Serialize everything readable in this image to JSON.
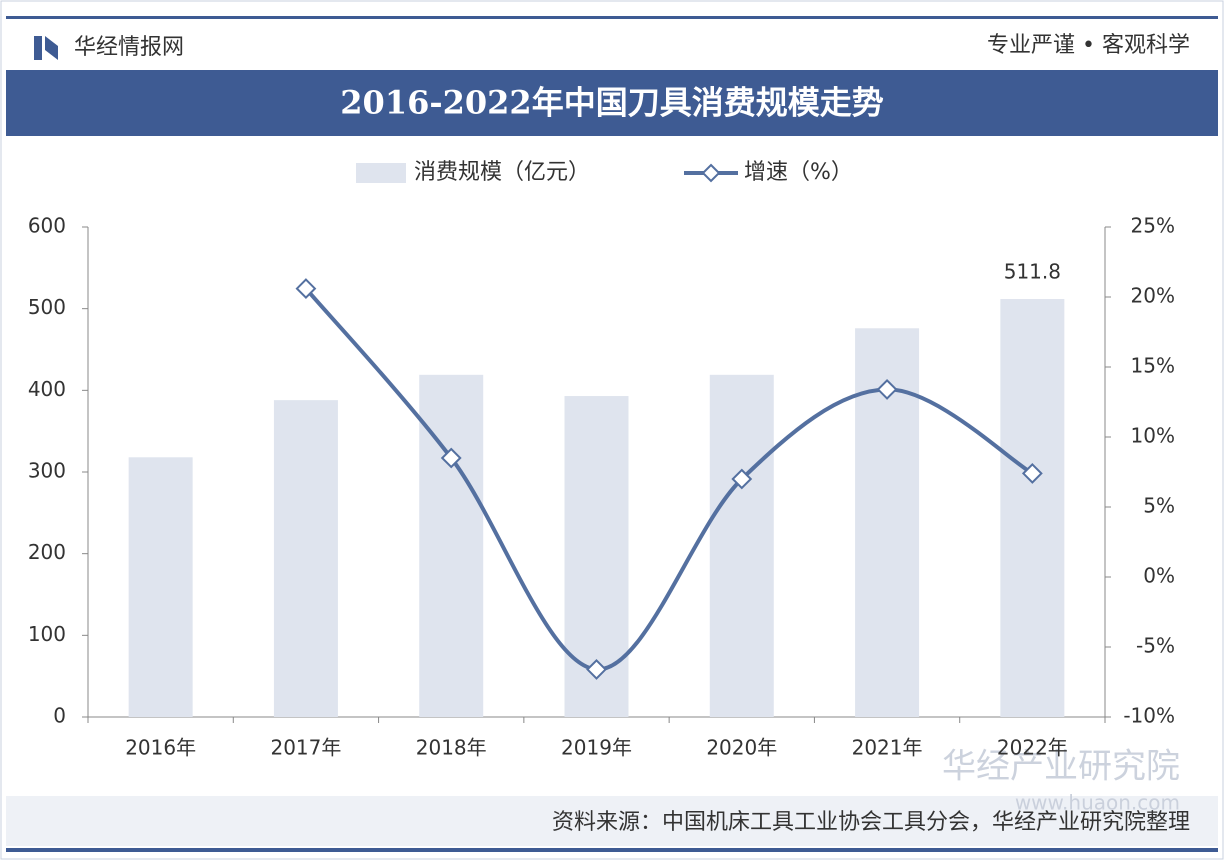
{
  "header": {
    "brand": "华经情报网",
    "slogan": "专业严谨 • 客观科学"
  },
  "chart_data": {
    "type": "bar",
    "title": "2016-2022年中国刀具消费规模走势",
    "categories": [
      "2016年",
      "2017年",
      "2018年",
      "2019年",
      "2020年",
      "2021年",
      "2022年"
    ],
    "series": [
      {
        "name": "消费规模（亿元）",
        "type": "bar",
        "color": "#dfe4ee",
        "values": [
          318,
          388,
          419,
          393,
          419,
          476,
          511.8
        ],
        "value_labels": [
          null,
          null,
          null,
          null,
          null,
          null,
          "511.8"
        ]
      },
      {
        "name": "增速（%）",
        "type": "line",
        "axis": "y2",
        "color": "#5470a0",
        "values": [
          null,
          20.6,
          8.5,
          -6.6,
          7.0,
          13.4,
          7.4
        ]
      }
    ],
    "ylim": [
      0,
      600
    ],
    "yticks": [
      0,
      100,
      200,
      300,
      400,
      500,
      600
    ],
    "y2lim": [
      -10,
      25
    ],
    "y2ticks": [
      {
        "value": -10,
        "label": "-10%"
      },
      {
        "value": -5,
        "label": "-5%"
      },
      {
        "value": 0,
        "label": "0%"
      },
      {
        "value": 5,
        "label": "5%"
      },
      {
        "value": 10,
        "label": "10%"
      },
      {
        "value": 15,
        "label": "15%"
      },
      {
        "value": 20,
        "label": "20%"
      },
      {
        "value": 25,
        "label": "25%"
      }
    ],
    "grid": false,
    "legend": "top"
  },
  "footer": {
    "source": "资料来源：中国机床工具工业协会工具分会，华经产业研究院整理",
    "watermark": "华经产业研究院",
    "url": "www.huaon.com"
  }
}
